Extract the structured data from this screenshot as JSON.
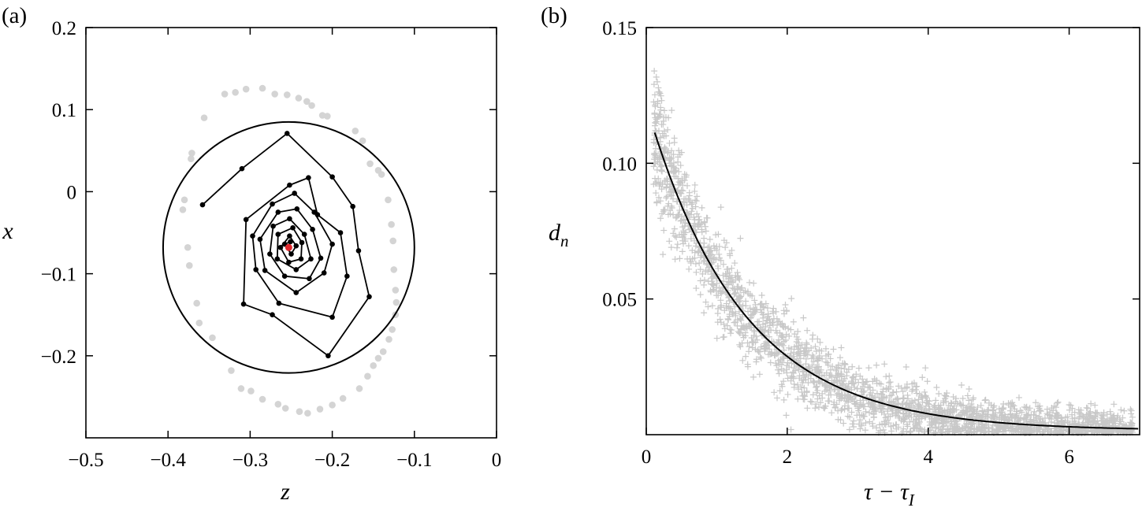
{
  "chart_data": [
    {
      "panel": "(a)",
      "type": "scatter",
      "title": "",
      "xlabel": "z",
      "ylabel": "x",
      "xlim": [
        -0.5,
        0
      ],
      "ylim": [
        -0.3,
        0.2
      ],
      "xticks": [
        "−0.5",
        "−0.4",
        "−0.3",
        "−0.2",
        "−0.1",
        "0"
      ],
      "xtick_values": [
        -0.5,
        -0.4,
        -0.3,
        -0.2,
        -0.1,
        0
      ],
      "yticks": [
        "0.2",
        "0.1",
        "0",
        "−0.1",
        "−0.2"
      ],
      "ytick_values": [
        0.2,
        0.1,
        0,
        -0.1,
        -0.2
      ],
      "colors": {
        "trajectory": "#000000",
        "outer_points": "#d4d4d4",
        "center": "#e0282d"
      },
      "circle": {
        "center": [
          -0.253,
          -0.068
        ],
        "radius": 0.153
      },
      "center_point": [
        -0.253,
        -0.068
      ],
      "trajectory": [
        [
          -0.358,
          -0.016
        ],
        [
          -0.31,
          0.028
        ],
        [
          -0.255,
          0.071
        ],
        [
          -0.2,
          0.018
        ],
        [
          -0.175,
          -0.018
        ],
        [
          -0.168,
          -0.072
        ],
        [
          -0.155,
          -0.128
        ],
        [
          -0.205,
          -0.2
        ],
        [
          -0.273,
          -0.15
        ],
        [
          -0.308,
          -0.137
        ],
        [
          -0.305,
          -0.034
        ],
        [
          -0.252,
          0.008
        ],
        [
          -0.229,
          0.017
        ],
        [
          -0.218,
          -0.028
        ],
        [
          -0.19,
          -0.05
        ],
        [
          -0.182,
          -0.103
        ],
        [
          -0.2,
          -0.153
        ],
        [
          -0.265,
          -0.136
        ],
        [
          -0.293,
          -0.095
        ],
        [
          -0.297,
          -0.054
        ],
        [
          -0.273,
          -0.015
        ],
        [
          -0.246,
          -0.002
        ],
        [
          -0.222,
          -0.025
        ],
        [
          -0.2,
          -0.064
        ],
        [
          -0.21,
          -0.099
        ],
        [
          -0.244,
          -0.123
        ],
        [
          -0.282,
          -0.096
        ],
        [
          -0.288,
          -0.058
        ],
        [
          -0.266,
          -0.025
        ],
        [
          -0.243,
          -0.021
        ],
        [
          -0.224,
          -0.046
        ],
        [
          -0.214,
          -0.081
        ],
        [
          -0.228,
          -0.106
        ],
        [
          -0.258,
          -0.103
        ],
        [
          -0.276,
          -0.076
        ],
        [
          -0.272,
          -0.042
        ],
        [
          -0.252,
          -0.033
        ],
        [
          -0.234,
          -0.052
        ],
        [
          -0.226,
          -0.082
        ],
        [
          -0.244,
          -0.095
        ],
        [
          -0.267,
          -0.082
        ],
        [
          -0.266,
          -0.052
        ],
        [
          -0.248,
          -0.044
        ],
        [
          -0.237,
          -0.062
        ],
        [
          -0.238,
          -0.082
        ],
        [
          -0.253,
          -0.086
        ],
        [
          -0.263,
          -0.068
        ],
        [
          -0.252,
          -0.054
        ],
        [
          -0.244,
          -0.066
        ],
        [
          -0.25,
          -0.076
        ],
        [
          -0.258,
          -0.064
        ],
        [
          -0.251,
          -0.061
        ],
        [
          -0.253,
          -0.068
        ]
      ],
      "outer_points": [
        [
          -0.285,
          0.126
        ],
        [
          -0.27,
          0.119
        ],
        [
          -0.305,
          0.125
        ],
        [
          -0.318,
          0.121
        ],
        [
          -0.331,
          0.119
        ],
        [
          -0.255,
          0.118
        ],
        [
          -0.241,
          0.114
        ],
        [
          -0.231,
          0.11
        ],
        [
          -0.225,
          0.105
        ],
        [
          -0.212,
          0.093
        ],
        [
          -0.206,
          0.092
        ],
        [
          -0.172,
          0.074
        ],
        [
          -0.163,
          0.062
        ],
        [
          -0.154,
          0.034
        ],
        [
          -0.144,
          0.026
        ],
        [
          -0.14,
          0.021
        ],
        [
          -0.356,
          0.09
        ],
        [
          -0.371,
          0.047
        ],
        [
          -0.372,
          0.04
        ],
        [
          -0.38,
          -0.01
        ],
        [
          -0.382,
          -0.022
        ],
        [
          -0.376,
          -0.068
        ],
        [
          -0.374,
          -0.09
        ],
        [
          -0.365,
          -0.136
        ],
        [
          -0.362,
          -0.16
        ],
        [
          -0.346,
          -0.178
        ],
        [
          -0.323,
          -0.218
        ],
        [
          -0.311,
          -0.24
        ],
        [
          -0.299,
          -0.243
        ],
        [
          -0.285,
          -0.253
        ],
        [
          -0.266,
          -0.259
        ],
        [
          -0.257,
          -0.264
        ],
        [
          -0.24,
          -0.268
        ],
        [
          -0.23,
          -0.27
        ],
        [
          -0.215,
          -0.265
        ],
        [
          -0.2,
          -0.26
        ],
        [
          -0.187,
          -0.252
        ],
        [
          -0.167,
          -0.24
        ],
        [
          -0.157,
          -0.225
        ],
        [
          -0.15,
          -0.212
        ],
        [
          -0.144,
          -0.203
        ],
        [
          -0.138,
          -0.195
        ],
        [
          -0.131,
          -0.18
        ],
        [
          -0.127,
          -0.168
        ],
        [
          -0.123,
          -0.15
        ],
        [
          -0.122,
          -0.135
        ],
        [
          -0.123,
          -0.12
        ],
        [
          -0.125,
          -0.095
        ],
        [
          -0.126,
          -0.06
        ],
        [
          -0.128,
          -0.04
        ],
        [
          -0.132,
          -0.01
        ]
      ]
    },
    {
      "panel": "(b)",
      "type": "scatter",
      "title": "",
      "xlabel": "τ − τ",
      "xlabel_sub": "I",
      "ylabel": "d",
      "ylabel_sub": "n",
      "xlim": [
        0,
        7
      ],
      "ylim": [
        0,
        0.15
      ],
      "xticks": [
        "0",
        "2",
        "4",
        "6"
      ],
      "xtick_values": [
        0,
        2,
        4,
        6
      ],
      "yticks": [
        "0.15",
        "0.10",
        "0.05"
      ],
      "ytick_values": [
        0.15,
        0.1,
        0.05
      ],
      "colors": {
        "scatter": "#c8c8c8",
        "fit": "#000000"
      },
      "fit_curve": {
        "a": 0.12,
        "k": 0.74,
        "c": 0.0015
      },
      "scatter_points": 2400
    }
  ]
}
